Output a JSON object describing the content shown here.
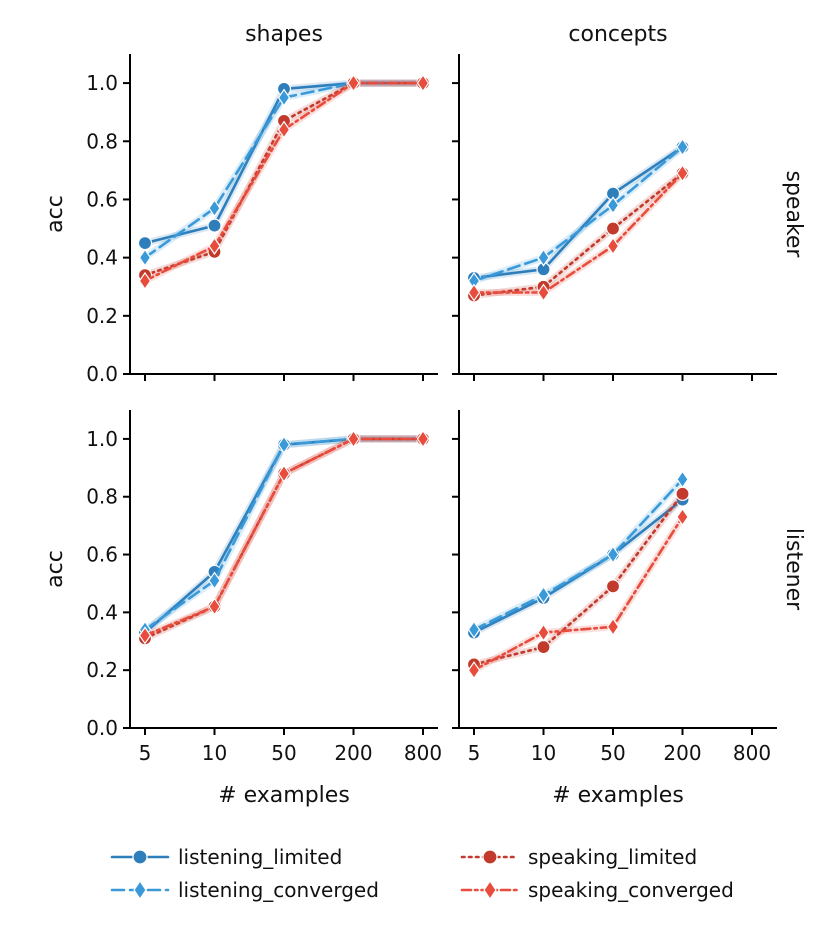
{
  "chart_data": {
    "type": "line",
    "column_titles": [
      "shapes",
      "concepts"
    ],
    "row_titles": [
      "speaker",
      "listener"
    ],
    "xlabel": "# examples",
    "ylabel": "acc",
    "x_categories": [
      "5",
      "10",
      "50",
      "200",
      "800"
    ],
    "y_ticks": [
      "0.0",
      "0.2",
      "0.4",
      "0.6",
      "0.8",
      "1.0"
    ],
    "ylim": [
      0,
      1.1
    ],
    "series_styles": [
      {
        "name": "listening_limited",
        "color": "#2e7ebc",
        "dash": "solid",
        "marker": "circle"
      },
      {
        "name": "listening_converged",
        "color": "#3a9ad9",
        "dash": "dashed",
        "marker": "diamond"
      },
      {
        "name": "speaking_limited",
        "color": "#c23a2b",
        "dash": "dotted",
        "marker": "circle"
      },
      {
        "name": "speaking_converged",
        "color": "#e74c3c",
        "dash": "dashdot",
        "marker": "diamond"
      }
    ],
    "panels": [
      {
        "row": "speaker",
        "col": "shapes",
        "series": [
          {
            "name": "listening_limited",
            "values": [
              0.45,
              0.51,
              0.98,
              1.0,
              1.0
            ]
          },
          {
            "name": "listening_converged",
            "values": [
              0.4,
              0.57,
              0.95,
              1.0,
              1.0
            ]
          },
          {
            "name": "speaking_limited",
            "values": [
              0.34,
              0.42,
              0.87,
              1.0,
              1.0
            ]
          },
          {
            "name": "speaking_converged",
            "values": [
              0.32,
              0.44,
              0.84,
              1.0,
              1.0
            ]
          }
        ]
      },
      {
        "row": "speaker",
        "col": "concepts",
        "series": [
          {
            "name": "listening_limited",
            "values": [
              0.33,
              0.36,
              0.62,
              0.78,
              null
            ]
          },
          {
            "name": "listening_converged",
            "values": [
              0.32,
              0.4,
              0.58,
              0.78,
              null
            ]
          },
          {
            "name": "speaking_limited",
            "values": [
              0.27,
              0.3,
              0.5,
              0.69,
              null
            ]
          },
          {
            "name": "speaking_converged",
            "values": [
              0.28,
              0.28,
              0.44,
              0.69,
              null
            ]
          }
        ]
      },
      {
        "row": "listener",
        "col": "shapes",
        "series": [
          {
            "name": "listening_limited",
            "values": [
              0.33,
              0.54,
              0.98,
              1.0,
              1.0
            ]
          },
          {
            "name": "listening_converged",
            "values": [
              0.34,
              0.51,
              0.98,
              1.0,
              1.0
            ]
          },
          {
            "name": "speaking_limited",
            "values": [
              0.31,
              0.42,
              0.88,
              1.0,
              1.0
            ]
          },
          {
            "name": "speaking_converged",
            "values": [
              0.32,
              0.42,
              0.88,
              1.0,
              1.0
            ]
          }
        ]
      },
      {
        "row": "listener",
        "col": "concepts",
        "series": [
          {
            "name": "listening_limited",
            "values": [
              0.33,
              0.45,
              0.6,
              0.79,
              null
            ]
          },
          {
            "name": "listening_converged",
            "values": [
              0.34,
              0.46,
              0.6,
              0.86,
              null
            ]
          },
          {
            "name": "speaking_limited",
            "values": [
              0.22,
              0.28,
              0.49,
              0.81,
              null
            ]
          },
          {
            "name": "speaking_converged",
            "values": [
              0.2,
              0.33,
              0.35,
              0.73,
              null
            ]
          }
        ]
      }
    ],
    "legend": {
      "placement": "bottom",
      "entries": [
        "listening_limited",
        "listening_converged",
        "speaking_limited",
        "speaking_converged"
      ]
    }
  }
}
